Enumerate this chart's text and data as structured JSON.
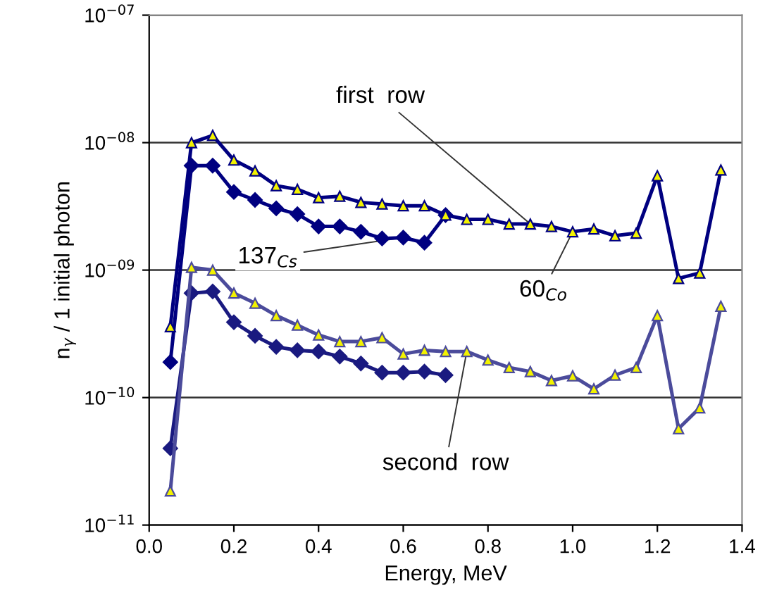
{
  "chart_data": {
    "type": "line",
    "xlabel": "Energy, MeV",
    "ylabel": "n$_{γ}$ / 1 initial photon",
    "log": "y",
    "grid": "y",
    "line_style": "solid",
    "x": [
      0.05,
      0.1,
      0.15,
      0.2,
      0.25,
      0.3,
      0.35,
      0.4,
      0.45,
      0.5,
      0.55,
      0.6,
      0.65,
      0.7,
      0.75,
      0.8,
      0.85,
      0.9,
      0.95,
      1.0,
      1.05,
      1.1,
      1.15,
      1.2,
      1.25,
      1.3,
      1.35
    ],
    "xlim": [
      0,
      1.4
    ],
    "xticks": [
      {
        "value": 0,
        "label": "0.0"
      },
      {
        "value": 0.2,
        "label": "0.2"
      },
      {
        "value": 0.4,
        "label": "0.4"
      },
      {
        "value": 0.6,
        "label": "0.6"
      },
      {
        "value": 0.8,
        "label": "0.8"
      },
      {
        "value": 1.0,
        "label": "1.0"
      },
      {
        "value": 1.2,
        "label": "1.2"
      },
      {
        "value": 1.4,
        "label": "1.4"
      }
    ],
    "ylim": [
      1e-11,
      1e-07
    ],
    "yticks": [
      {
        "value": 1e-11,
        "label": "10$^{−11}$"
      },
      {
        "value": 1e-10,
        "label": "10$^{−10}$"
      },
      {
        "value": 1e-09,
        "label": "10$^{−09}$"
      },
      {
        "value": 1e-08,
        "label": "10$^{−08}$"
      },
      {
        "value": 1e-07,
        "label": "10$^{−07}$"
      }
    ],
    "series": [
      {
        "color": "#000080",
        "marker": "triangle",
        "values": [
          3.6e-10,
          1e-08,
          1.14e-08,
          7.3e-09,
          6e-09,
          4.6e-09,
          4.3e-09,
          3.7e-09,
          3.8e-09,
          3.4e-09,
          3.3e-09,
          3.2e-09,
          3.2e-09,
          2.7e-09,
          2.5e-09,
          2.5e-09,
          2.3e-09,
          2.3e-09,
          2.2e-09,
          2e-09,
          2.1e-09,
          1.86e-09,
          1.95e-09,
          5.5e-09,
          8.6e-10,
          9.5e-10,
          6.1e-09
        ]
      },
      {
        "color": "#000080",
        "marker": "diamond",
        "values": [
          1.9e-10,
          6.6e-09,
          6.6e-09,
          4.1e-09,
          3.55e-09,
          3.05e-09,
          2.75e-09,
          2.2e-09,
          2.2e-09,
          2e-09,
          1.77e-09,
          1.8e-09,
          1.64e-09,
          2.7e-09,
          null,
          null,
          null,
          null,
          null,
          null,
          null,
          null,
          null,
          null,
          null,
          null,
          null
        ]
      },
      {
        "color": "#4b4b9b",
        "marker": "triangle",
        "values": [
          1.85e-11,
          1.05e-09,
          1e-09,
          6.6e-10,
          5.5e-10,
          4.4e-10,
          3.7e-10,
          3.1e-10,
          2.75e-10,
          2.75e-10,
          2.95e-10,
          2.2e-10,
          2.35e-10,
          2.3e-10,
          2.3e-10,
          1.97e-10,
          1.72e-10,
          1.6e-10,
          1.36e-10,
          1.48e-10,
          1.17e-10,
          1.5e-10,
          1.72e-10,
          4.4e-10,
          5.7e-11,
          8.3e-11,
          5.2e-10
        ]
      },
      {
        "color": "#1a1a80",
        "marker": "diamond",
        "values": [
          4e-11,
          6.6e-10,
          6.8e-10,
          3.9e-10,
          3.05e-10,
          2.5e-10,
          2.35e-10,
          2.3e-10,
          2.1e-10,
          1.85e-10,
          1.57e-10,
          1.57e-10,
          1.6e-10,
          1.5e-10,
          null,
          null,
          null,
          null,
          null,
          null,
          null,
          null,
          null,
          null,
          null,
          null,
          null
        ]
      }
    ],
    "annotations": [
      {
        "text": "first  row",
        "x": 0.9,
        "y": 2.3e-09
      },
      {
        "text": "137$_{Cs}$",
        "x": 0.6,
        "y": 1.8e-09
      },
      {
        "text": "60$_{Co}$",
        "x": 1.0,
        "y": 2e-09
      },
      {
        "text": "second  row",
        "x": 0.75,
        "y": 2.3e-10
      }
    ]
  }
}
